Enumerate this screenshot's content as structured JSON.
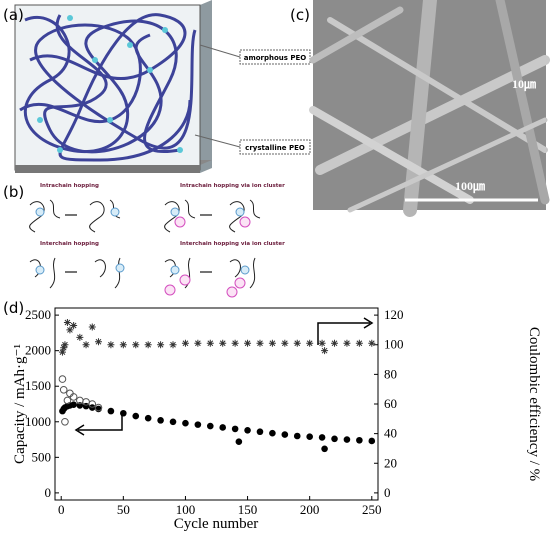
{
  "panels": {
    "a": "(a)",
    "b": "(b)",
    "c": "(c)",
    "d": "(d)"
  },
  "diagram_a": {
    "labels": [
      "amorphous PEO",
      "crystalline PEO"
    ]
  },
  "diagram_b": {
    "labels": [
      "Intrachain hopping",
      "Intrachain hopping via ion cluster",
      "Interchain hopping",
      "Interchain hopping via ion cluster"
    ]
  },
  "image_c": {
    "scale_labels": [
      "10㎛",
      "100㎛"
    ]
  },
  "chart_data": {
    "type": "scatter",
    "x_label": "Cycle number",
    "y_label": "Capacity / mAh·g⁻¹",
    "y2_label": "Coulombic efficiency / %",
    "x": [
      1,
      2,
      3,
      5,
      7,
      10,
      15,
      20,
      25,
      30,
      40,
      50,
      60,
      70,
      80,
      90,
      100,
      110,
      120,
      130,
      140,
      143,
      150,
      160,
      170,
      180,
      190,
      200,
      210,
      212,
      220,
      230,
      240,
      250
    ],
    "xlim": [
      -5,
      255
    ],
    "xticks": [
      0,
      50,
      100,
      150,
      200,
      250
    ],
    "ylim": [
      -100,
      2600
    ],
    "yticks": [
      0,
      500,
      1000,
      1500,
      2000,
      2500
    ],
    "y2lim": [
      -4.8,
      124.8
    ],
    "y2ticks": [
      0,
      20,
      40,
      60,
      80,
      100,
      120
    ],
    "series": [
      {
        "color": "#000000",
        "marker": "filled-circle",
        "values": [
          1150,
          1180,
          1200,
          1220,
          1230,
          1240,
          1230,
          1220,
          1200,
          1180,
          1150,
          1120,
          1080,
          1050,
          1020,
          1000,
          980,
          960,
          940,
          920,
          900,
          720,
          880,
          860,
          840,
          820,
          800,
          790,
          780,
          620,
          760,
          750,
          740,
          730
        ]
      },
      {
        "color": "#555555",
        "marker": "open-circle",
        "values": [
          1600,
          1450,
          1000,
          1300,
          1400,
          1350,
          1300,
          1280,
          1250,
          1200,
          null,
          null,
          null,
          null,
          null,
          null,
          null,
          null,
          null,
          null,
          null,
          null,
          null,
          null,
          null,
          null,
          null,
          null,
          null,
          null,
          null,
          null,
          null,
          null
        ]
      },
      {
        "color": "#333333",
        "marker": "star",
        "axis": "y2",
        "values": [
          95,
          98,
          100,
          115,
          110,
          113,
          105,
          100,
          112,
          102,
          100,
          100,
          100,
          100,
          100,
          100,
          101,
          101,
          101,
          101,
          101,
          null,
          101,
          101,
          101,
          101,
          101,
          101,
          101,
          96,
          101,
          101,
          101,
          101
        ]
      }
    ]
  }
}
